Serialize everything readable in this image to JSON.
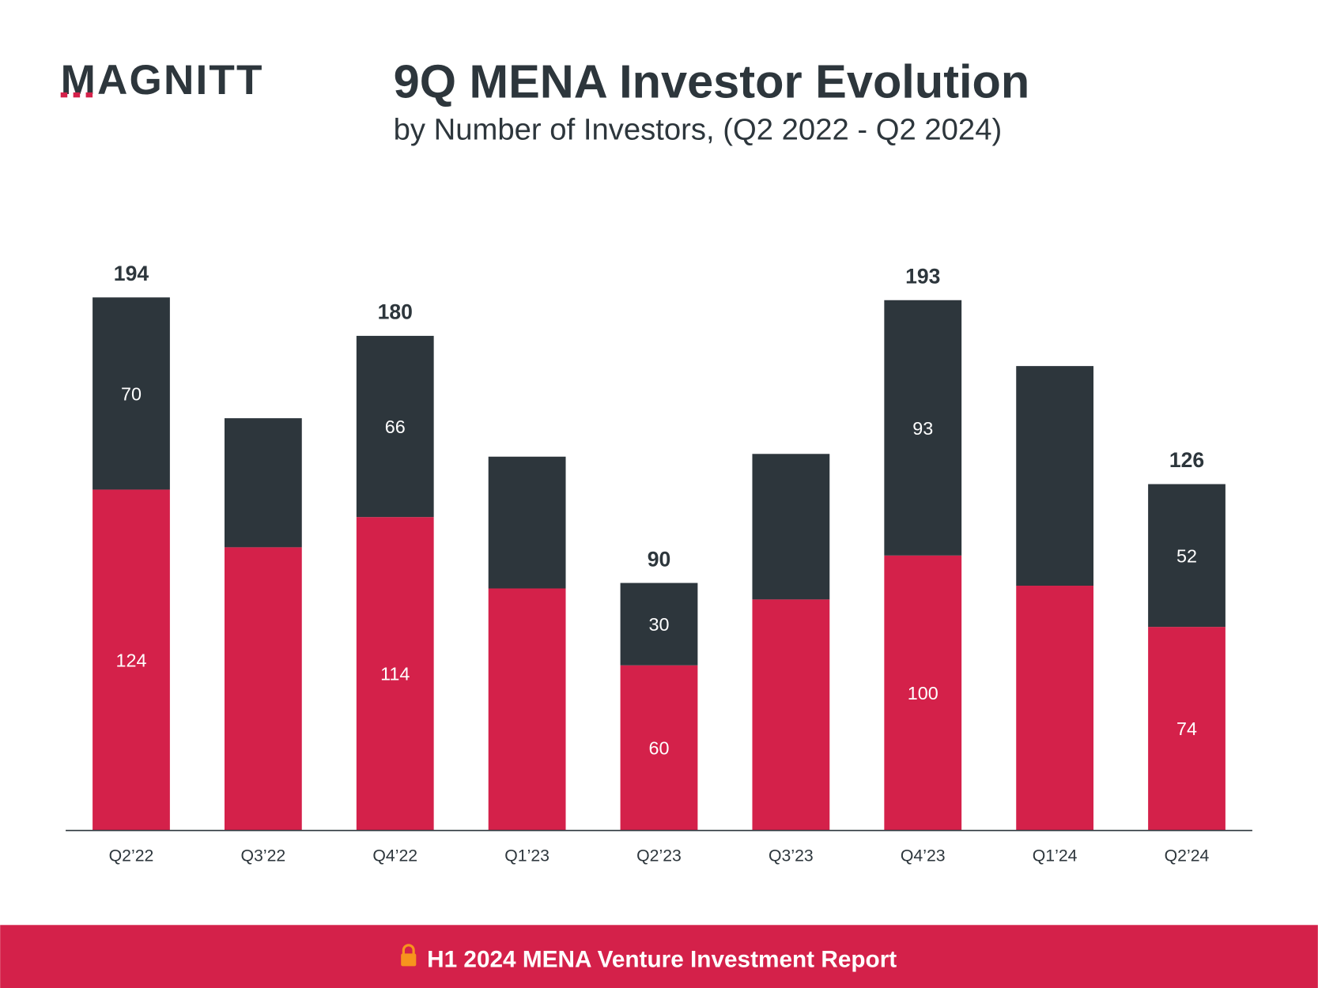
{
  "brand": {
    "logo_text": "MAGNITT",
    "accent": "#D4214A",
    "dark": "#2D363C"
  },
  "footer": {
    "text": "H1 2024 MENA Venture Investment Report",
    "icon": "lock-icon",
    "lock_color": "#F7941D",
    "background": "#D4214A"
  },
  "chart_data": {
    "type": "bar",
    "stacked": true,
    "title": "9Q MENA Investor Evolution",
    "subtitle": "by Number of Investors, (Q2 2022 - Q2 2024)",
    "categories": [
      "Q2’22",
      "Q3’22",
      "Q4’22",
      "Q1’23",
      "Q2’23",
      "Q3’23",
      "Q4’23",
      "Q1’24",
      "Q2’24"
    ],
    "series": [
      {
        "color": "#D4214A",
        "values": [
          124,
          103,
          114,
          88,
          60,
          84,
          100,
          89,
          74
        ],
        "labels": [
          "124",
          null,
          "114",
          null,
          "60",
          null,
          "100",
          null,
          "74"
        ]
      },
      {
        "color": "#2D363C",
        "values": [
          70,
          47,
          66,
          48,
          30,
          53,
          93,
          80,
          52
        ],
        "labels": [
          "70",
          null,
          "66",
          null,
          "30",
          null,
          "93",
          null,
          "52"
        ]
      }
    ],
    "totals": [
      194,
      150,
      180,
      136,
      90,
      137,
      193,
      169,
      126
    ],
    "total_labels": [
      "194",
      null,
      "180",
      null,
      "90",
      null,
      "193",
      null,
      "126"
    ],
    "ylim": [
      0,
      200
    ],
    "grid": false,
    "legend": "none"
  }
}
